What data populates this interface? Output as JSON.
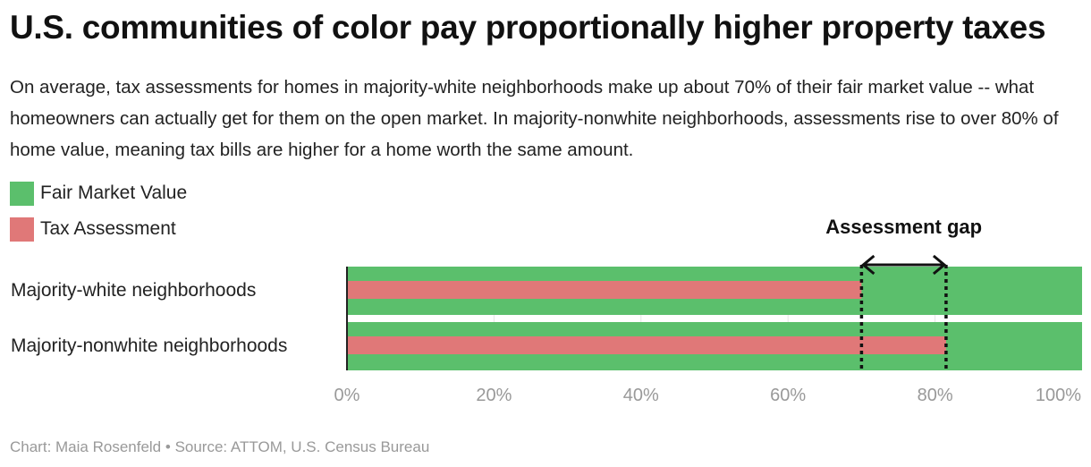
{
  "title": "U.S. communities of color pay proportionally higher property taxes",
  "subtitle": "On average, tax assessments for homes in majority-white neighborhoods make up about 70% of their fair market value -- what homeowners can actually get for them on the open market. In majority-nonwhite neighborhoods, assessments rise to over 80% of home value, meaning tax bills are higher for a home worth the same amount.",
  "legend": [
    {
      "label": "Fair Market Value",
      "color": "#5bbf6c"
    },
    {
      "label": "Tax Assessment",
      "color": "#e07878"
    }
  ],
  "footer": {
    "credit": "Chart: Maia Rosenfeld",
    "separator": "•",
    "source": "Source: ATTOM, U.S. Census Bureau"
  },
  "chart_data": {
    "type": "bar",
    "orientation": "horizontal",
    "categories": [
      "Majority-white neighborhoods",
      "Majority-nonwhite neighborhoods"
    ],
    "series": [
      {
        "name": "Fair Market Value",
        "values": [
          100,
          100
        ],
        "color": "#5bbf6c"
      },
      {
        "name": "Tax Assessment",
        "values": [
          70,
          81.5
        ],
        "color": "#e07878"
      }
    ],
    "xlim": [
      0,
      100
    ],
    "ticks": [
      0,
      20,
      40,
      60,
      80,
      100
    ],
    "tick_labels": [
      "0%",
      "20%",
      "40%",
      "60%",
      "80%",
      "100%"
    ],
    "annotation": {
      "label": "Assessment gap",
      "from": 70,
      "to": 81.5
    }
  }
}
